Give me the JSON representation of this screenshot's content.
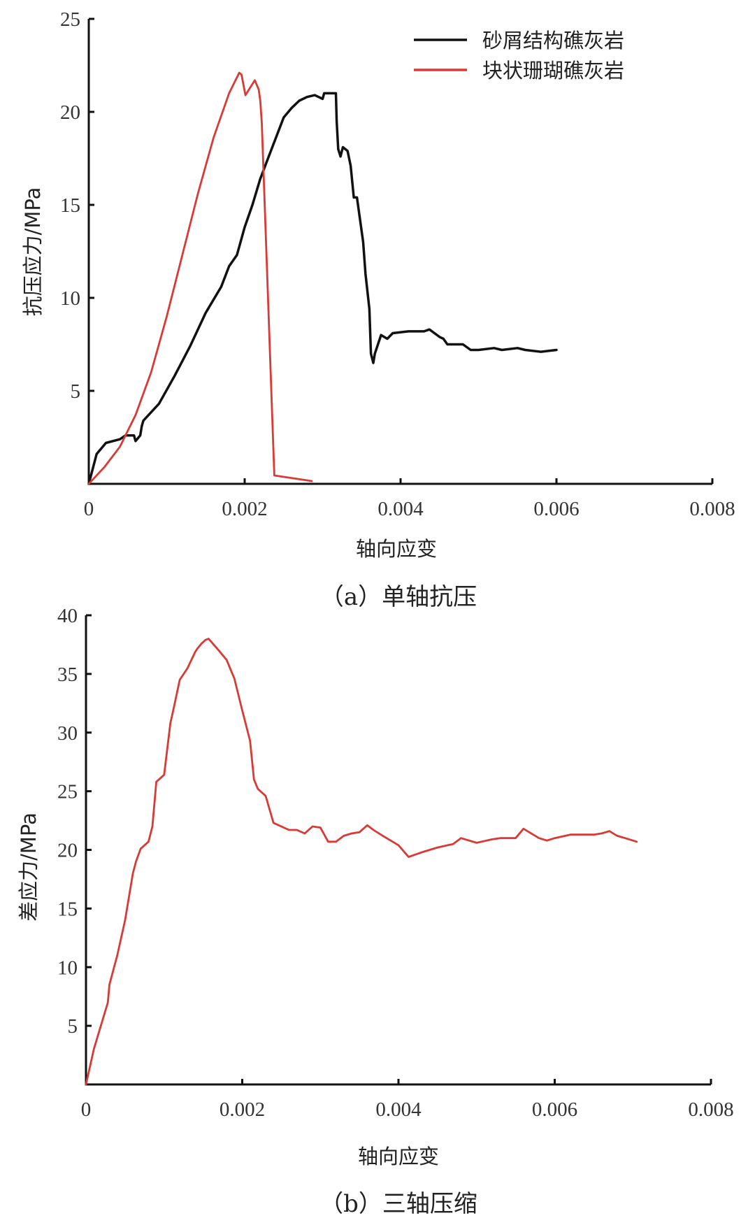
{
  "chart_data": [
    {
      "id": "a",
      "type": "line",
      "title": "",
      "caption": "（a）单轴抗压",
      "xlabel": "轴向应变",
      "ylabel": "抗压应力/MPa",
      "xlim": [
        0,
        0.008
      ],
      "ylim": [
        0,
        25
      ],
      "x_ticks": [
        0,
        0.002,
        0.004,
        0.006,
        0.008
      ],
      "x_tick_labels": [
        "0",
        "0.002",
        "0.004",
        "0.006",
        "0.008"
      ],
      "y_ticks": [
        5,
        10,
        15,
        20,
        25
      ],
      "y_tick_labels": [
        "5",
        "10",
        "15",
        "20",
        "25"
      ],
      "grid": false,
      "legend_position": "upper right",
      "series": [
        {
          "name": "砂屑结构礁灰岩",
          "color": "#111111",
          "x": [
            0,
            0.0001,
            0.00022,
            0.0004,
            0.00047,
            0.00058,
            0.0006,
            0.00066,
            0.00068,
            0.0007,
            0.0009,
            0.0011,
            0.0013,
            0.0015,
            0.0017,
            0.0018,
            0.0019,
            0.002,
            0.0021,
            0.0022,
            0.0023,
            0.0024,
            0.0025,
            0.0026,
            0.0027,
            0.0028,
            0.0029,
            0.003,
            0.00302,
            0.00308,
            0.00317,
            0.00318,
            0.0032,
            0.00323,
            0.00326,
            0.00332,
            0.00336,
            0.0034,
            0.00344,
            0.00352,
            0.00355,
            0.0036,
            0.00362,
            0.00365,
            0.00367,
            0.00375,
            0.00383,
            0.0039,
            0.0041,
            0.0043,
            0.00437,
            0.0045,
            0.00455,
            0.0046,
            0.0048,
            0.0049,
            0.005,
            0.0052,
            0.0053,
            0.0055,
            0.0056,
            0.0058,
            0.006
          ],
          "y": [
            0,
            1.6,
            2.2,
            2.4,
            2.6,
            2.6,
            2.3,
            2.6,
            3.1,
            3.4,
            4.3,
            5.8,
            7.4,
            9.2,
            10.6,
            11.7,
            12.3,
            13.8,
            15.0,
            16.4,
            17.5,
            18.6,
            19.7,
            20.2,
            20.6,
            20.8,
            20.9,
            20.7,
            21.0,
            21.0,
            21.0,
            19.5,
            18.0,
            17.6,
            18.1,
            17.9,
            17.1,
            15.4,
            15.4,
            13.0,
            11.3,
            9.4,
            7.0,
            6.5,
            7.0,
            8.0,
            7.8,
            8.1,
            8.2,
            8.2,
            8.3,
            7.9,
            7.8,
            7.5,
            7.5,
            7.2,
            7.2,
            7.3,
            7.2,
            7.3,
            7.2,
            7.1,
            7.2
          ]
        },
        {
          "name": "块状珊瑚礁灰岩",
          "color": "#d93a35",
          "x": [
            0,
            0.0002,
            0.0004,
            0.0006,
            0.0008,
            0.001,
            0.0012,
            0.0014,
            0.0016,
            0.0018,
            0.00193,
            0.00196,
            0.00201,
            0.00207,
            0.00213,
            0.00218,
            0.0022,
            0.00222,
            0.00238,
            0.00286
          ],
          "y": [
            0,
            0.9,
            2.0,
            3.7,
            6.0,
            9.0,
            12.3,
            15.6,
            18.6,
            21.0,
            22.1,
            22.0,
            20.9,
            21.3,
            21.7,
            21.2,
            20.6,
            19.4,
            0.45,
            0.15
          ]
        }
      ]
    },
    {
      "id": "b",
      "type": "line",
      "title": "",
      "caption": "（b）三轴压缩",
      "xlabel": "轴向应变",
      "ylabel": "差应力/MPa",
      "xlim": [
        0,
        0.008
      ],
      "ylim": [
        0,
        40
      ],
      "x_ticks": [
        0,
        0.002,
        0.004,
        0.006,
        0.008
      ],
      "x_tick_labels": [
        "0",
        "0.002",
        "0.004",
        "0.006",
        "0.008"
      ],
      "y_ticks": [
        5,
        10,
        15,
        20,
        25,
        30,
        35,
        40
      ],
      "y_tick_labels": [
        "5",
        "10",
        "15",
        "20",
        "25",
        "30",
        "35",
        "40"
      ],
      "grid": false,
      "series": [
        {
          "name": "块状珊瑚礁灰岩",
          "color": "#d93a35",
          "x": [
            0,
            0.0001,
            0.00028,
            0.0003,
            0.0004,
            0.0005,
            0.00055,
            0.0006,
            0.00064,
            0.0007,
            0.0008,
            0.00085,
            0.0009,
            0.001,
            0.00108,
            0.00112,
            0.0012,
            0.0013,
            0.0014,
            0.00143,
            0.00148,
            0.00153,
            0.00157,
            0.0017,
            0.0018,
            0.0019,
            0.002,
            0.0021,
            0.00215,
            0.0022,
            0.0023,
            0.0024,
            0.0025,
            0.0026,
            0.0027,
            0.0028,
            0.0029,
            0.003,
            0.0031,
            0.0032,
            0.0033,
            0.0034,
            0.0035,
            0.0036,
            0.00368,
            0.0038,
            0.004,
            0.00413,
            0.0043,
            0.0045,
            0.0047,
            0.0048,
            0.005,
            0.0052,
            0.0053,
            0.0055,
            0.0056,
            0.0058,
            0.0059,
            0.006,
            0.0062,
            0.0064,
            0.0065,
            0.0066,
            0.0067,
            0.0068,
            0.0069,
            0.00705
          ],
          "y": [
            0,
            3.0,
            7.0,
            8.5,
            11.0,
            14.0,
            16.0,
            18.0,
            19.0,
            20.1,
            20.7,
            22.0,
            25.8,
            26.4,
            30.8,
            32.0,
            34.5,
            35.5,
            36.9,
            37.2,
            37.6,
            37.9,
            38.0,
            37.0,
            36.2,
            34.6,
            31.9,
            29.3,
            26.0,
            25.2,
            24.6,
            22.3,
            22.0,
            21.7,
            21.7,
            21.4,
            22.0,
            21.9,
            20.7,
            20.7,
            21.2,
            21.4,
            21.5,
            22.1,
            21.7,
            21.2,
            20.4,
            19.4,
            19.8,
            20.2,
            20.5,
            21.0,
            20.6,
            20.9,
            21.0,
            21.0,
            21.8,
            21.0,
            20.8,
            21.0,
            21.3,
            21.3,
            21.3,
            21.4,
            21.6,
            21.2,
            21.0,
            20.7
          ]
        }
      ]
    }
  ],
  "figure": {
    "panel_a": {
      "xlabel": "轴向应变",
      "ylabel": "抗压应力/MPa",
      "caption": "（a）单轴抗压",
      "legend": [
        {
          "label": "砂屑结构礁灰岩",
          "color": "#111111"
        },
        {
          "label": "块状珊瑚礁灰岩",
          "color": "#d93a35"
        }
      ]
    },
    "panel_b": {
      "xlabel": "轴向应变",
      "ylabel": "差应力/MPa",
      "caption": "（b）三轴压缩"
    }
  }
}
